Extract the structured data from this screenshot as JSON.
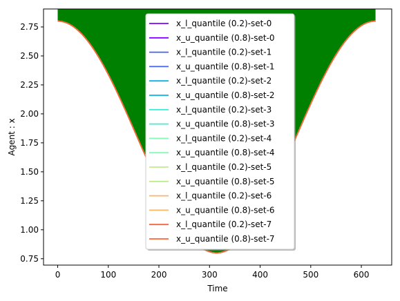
{
  "chart_data": {
    "type": "line",
    "xlabel": "Time",
    "ylabel": "Agent : x",
    "xlim": [
      -28,
      660
    ],
    "ylim": [
      0.695,
      2.905
    ],
    "x_ticks": [
      0,
      100,
      200,
      300,
      400,
      500,
      600
    ],
    "y_ticks": [
      0.75,
      1.0,
      1.25,
      1.5,
      1.75,
      2.0,
      2.25,
      2.5,
      2.75
    ],
    "x_tick_labels": [
      "0",
      "100",
      "200",
      "300",
      "400",
      "500",
      "600"
    ],
    "y_tick_labels": [
      "0.75",
      "1.00",
      "1.25",
      "1.50",
      "1.75",
      "2.00",
      "2.25",
      "2.50",
      "2.75"
    ],
    "grid": false,
    "legend_position": "top-center",
    "fill_color": "#008000",
    "curve": {
      "x_start": 0,
      "x_end": 628,
      "y_max": 2.8,
      "y_min": 0.8,
      "shape": "cosine"
    },
    "fill_upper": 2.905,
    "series": [
      {
        "name": "x_l_quantile (0.2)-set-0",
        "color": "#8000ff"
      },
      {
        "name": "x_u_quantile (0.8)-set-0",
        "color": "#8000ff"
      },
      {
        "name": "x_l_quantile (0.2)-set-1",
        "color": "#4062fa"
      },
      {
        "name": "x_u_quantile (0.8)-set-1",
        "color": "#4062fa"
      },
      {
        "name": "x_l_quantile (0.2)-set-2",
        "color": "#00b4eb"
      },
      {
        "name": "x_u_quantile (0.8)-set-2",
        "color": "#00b4eb"
      },
      {
        "name": "x_l_quantile (0.2)-set-3",
        "color": "#40ecd4"
      },
      {
        "name": "x_u_quantile (0.8)-set-3",
        "color": "#40ecd4"
      },
      {
        "name": "x_l_quantile (0.2)-set-4",
        "color": "#80ffb4"
      },
      {
        "name": "x_u_quantile (0.8)-set-4",
        "color": "#80ffb4"
      },
      {
        "name": "x_l_quantile (0.2)-set-5",
        "color": "#c0eb8d"
      },
      {
        "name": "x_u_quantile (0.8)-set-5",
        "color": "#c0eb8d"
      },
      {
        "name": "x_l_quantile (0.2)-set-6",
        "color": "#ffb462"
      },
      {
        "name": "x_u_quantile (0.8)-set-6",
        "color": "#ffb462"
      },
      {
        "name": "x_l_quantile (0.2)-set-7",
        "color": "#ff6232"
      },
      {
        "name": "x_u_quantile (0.8)-set-7",
        "color": "#ff6232"
      }
    ]
  }
}
